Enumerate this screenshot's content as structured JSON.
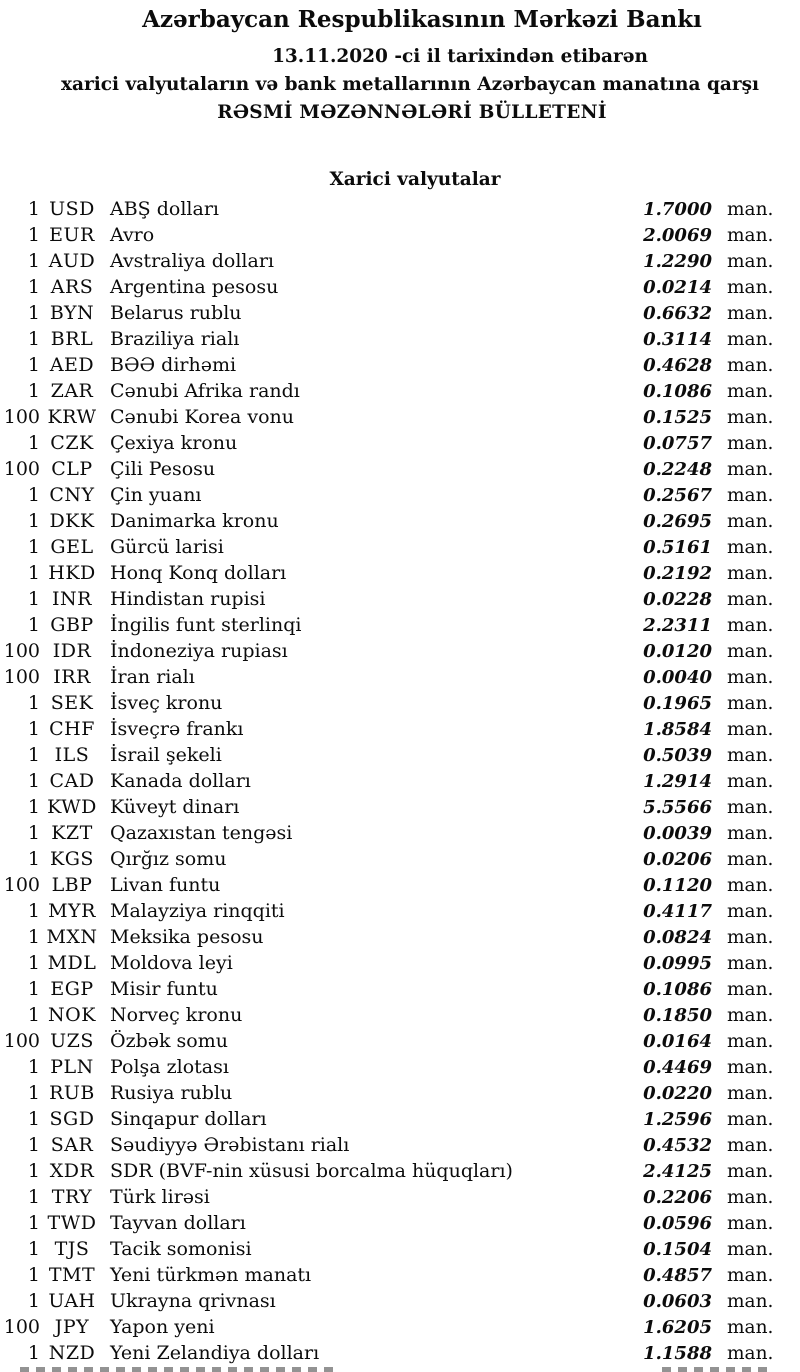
{
  "document": {
    "bank_name": "Azərbaycan Respublikasının Mərkəzi Bankı",
    "date_line": "13.11.2020 -ci il tarixindən etibarən",
    "scope_line": "xarici valyutaların və bank metallarının Azərbaycan manatına qarşı",
    "bulletin_title": "RƏSMİ MƏZƏNNƏLƏRİ BÜLLETENİ",
    "section_title": "Xarici valyutalar",
    "unit_label": "man."
  },
  "rates": [
    {
      "qty": "1",
      "code": "USD",
      "name": "ABŞ dolları",
      "rate": "1.7000"
    },
    {
      "qty": "1",
      "code": "EUR",
      "name": "Avro",
      "rate": "2.0069"
    },
    {
      "qty": "1",
      "code": "AUD",
      "name": "Avstraliya dolları",
      "rate": "1.2290"
    },
    {
      "qty": "1",
      "code": "ARS",
      "name": "Argentina pesosu",
      "rate": "0.0214"
    },
    {
      "qty": "1",
      "code": "BYN",
      "name": "Belarus rublu",
      "rate": "0.6632"
    },
    {
      "qty": "1",
      "code": "BRL",
      "name": "Braziliya rialı",
      "rate": "0.3114"
    },
    {
      "qty": "1",
      "code": "AED",
      "name": "BƏƏ dirhəmi",
      "rate": "0.4628"
    },
    {
      "qty": "1",
      "code": "ZAR",
      "name": "Cənubi Afrika randı",
      "rate": "0.1086"
    },
    {
      "qty": "100",
      "code": "KRW",
      "name": "Cənubi Korea vonu",
      "rate": "0.1525"
    },
    {
      "qty": "1",
      "code": "CZK",
      "name": "Çexiya kronu",
      "rate": "0.0757"
    },
    {
      "qty": "100",
      "code": "CLP",
      "name": "Çili Pesosu",
      "rate": "0.2248"
    },
    {
      "qty": "1",
      "code": "CNY",
      "name": "Çin yuanı",
      "rate": "0.2567"
    },
    {
      "qty": "1",
      "code": "DKK",
      "name": "Danimarka kronu",
      "rate": "0.2695"
    },
    {
      "qty": "1",
      "code": "GEL",
      "name": "Gürcü larisi",
      "rate": "0.5161"
    },
    {
      "qty": "1",
      "code": "HKD",
      "name": "Honq Konq dolları",
      "rate": "0.2192"
    },
    {
      "qty": "1",
      "code": "INR",
      "name": "Hindistan rupisi",
      "rate": "0.0228"
    },
    {
      "qty": "1",
      "code": "GBP",
      "name": "İngilis funt sterlinqi",
      "rate": "2.2311"
    },
    {
      "qty": "100",
      "code": "IDR",
      "name": "İndoneziya rupiası",
      "rate": "0.0120"
    },
    {
      "qty": "100",
      "code": "IRR",
      "name": "İran rialı",
      "rate": "0.0040"
    },
    {
      "qty": "1",
      "code": "SEK",
      "name": "İsveç kronu",
      "rate": "0.1965"
    },
    {
      "qty": "1",
      "code": "CHF",
      "name": "İsveçrə frankı",
      "rate": "1.8584"
    },
    {
      "qty": "1",
      "code": "ILS",
      "name": "İsrail şekeli",
      "rate": "0.5039"
    },
    {
      "qty": "1",
      "code": "CAD",
      "name": "Kanada dolları",
      "rate": "1.2914"
    },
    {
      "qty": "1",
      "code": "KWD",
      "name": "Küveyt dinarı",
      "rate": "5.5566"
    },
    {
      "qty": "1",
      "code": "KZT",
      "name": "Qazaxıstan tengəsi",
      "rate": "0.0039"
    },
    {
      "qty": "1",
      "code": "KGS",
      "name": "Qırğız somu",
      "rate": "0.0206"
    },
    {
      "qty": "100",
      "code": "LBP",
      "name": "Livan funtu",
      "rate": "0.1120"
    },
    {
      "qty": "1",
      "code": "MYR",
      "name": "Malayziya rinqqiti",
      "rate": "0.4117"
    },
    {
      "qty": "1",
      "code": "MXN",
      "name": "Meksika pesosu",
      "rate": "0.0824"
    },
    {
      "qty": "1",
      "code": "MDL",
      "name": "Moldova leyi",
      "rate": "0.0995"
    },
    {
      "qty": "1",
      "code": "EGP",
      "name": "Misir funtu",
      "rate": "0.1086"
    },
    {
      "qty": "1",
      "code": "NOK",
      "name": "Norveç kronu",
      "rate": "0.1850"
    },
    {
      "qty": "100",
      "code": "UZS",
      "name": "Özbək somu",
      "rate": "0.0164"
    },
    {
      "qty": "1",
      "code": "PLN",
      "name": "Polşa zlotası",
      "rate": "0.4469"
    },
    {
      "qty": "1",
      "code": "RUB",
      "name": "Rusiya rublu",
      "rate": "0.0220"
    },
    {
      "qty": "1",
      "code": "SGD",
      "name": "Sinqapur dolları",
      "rate": "1.2596"
    },
    {
      "qty": "1",
      "code": "SAR",
      "name": "Səudiyyə Ərəbistanı rialı",
      "rate": "0.4532"
    },
    {
      "qty": "1",
      "code": "XDR",
      "name": "SDR (BVF-nin xüsusi borcalma hüquqları)",
      "rate": "2.4125"
    },
    {
      "qty": "1",
      "code": "TRY",
      "name": "Türk lirəsi",
      "rate": "0.2206"
    },
    {
      "qty": "1",
      "code": "TWD",
      "name": "Tayvan dolları",
      "rate": "0.0596"
    },
    {
      "qty": "1",
      "code": "TJS",
      "name": "Tacik somonisi",
      "rate": "0.1504"
    },
    {
      "qty": "1",
      "code": "TMT",
      "name": "Yeni türkmən manatı",
      "rate": "0.4857"
    },
    {
      "qty": "1",
      "code": "UAH",
      "name": "Ukrayna qrivnası",
      "rate": "0.0603"
    },
    {
      "qty": "100",
      "code": "JPY",
      "name": "Yapon yeni",
      "rate": "1.6205"
    },
    {
      "qty": "1",
      "code": "NZD",
      "name": "Yeni Zelandiya dolları",
      "rate": "1.1588"
    }
  ]
}
